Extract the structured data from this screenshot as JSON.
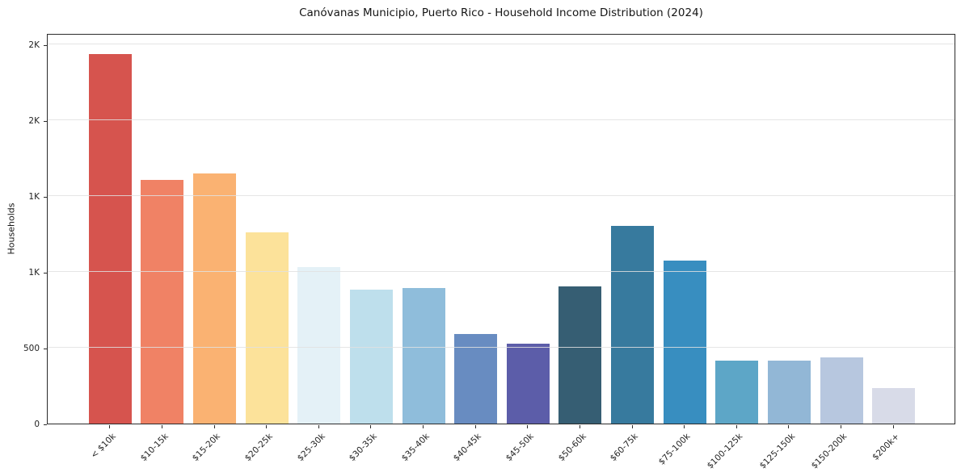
{
  "chart_data": {
    "type": "bar",
    "title": "Canóvanas Municipio, Puerto Rico - Household Income Distribution (2024)",
    "xlabel": "",
    "ylabel": "Households",
    "categories": [
      "< $10k",
      "$10-15k",
      "$15-20k",
      "$20-25k",
      "$25-30k",
      "$30-35k",
      "$35-40k",
      "$40-45k",
      "$45-50k",
      "$50-60k",
      "$60-75k",
      "$75-100k",
      "$100-125k",
      "$125-150k",
      "$150-200k",
      "$200k+"
    ],
    "values": [
      2435,
      1605,
      1650,
      1260,
      1032,
      884,
      895,
      590,
      528,
      906,
      1304,
      1074,
      417,
      415,
      435,
      236
    ],
    "bar_colors": [
      "#d6544e",
      "#f08265",
      "#fab272",
      "#fce29a",
      "#e4f1f7",
      "#bedfec",
      "#8fbddb",
      "#688cc1",
      "#5c5da9",
      "#365e73",
      "#377a9e",
      "#388ec0",
      "#5da6c7",
      "#92b7d6",
      "#b7c7df",
      "#d8dbe8"
    ],
    "ylim": [
      0,
      2575
    ],
    "yticks": [
      {
        "value": 0,
        "label": "0"
      },
      {
        "value": 500,
        "label": "500"
      },
      {
        "value": 1000,
        "label": "1K"
      },
      {
        "value": 1500,
        "label": "1K"
      },
      {
        "value": 2000,
        "label": "2K"
      },
      {
        "value": 2500,
        "label": "2K"
      }
    ],
    "grid": true,
    "legend": null
  }
}
